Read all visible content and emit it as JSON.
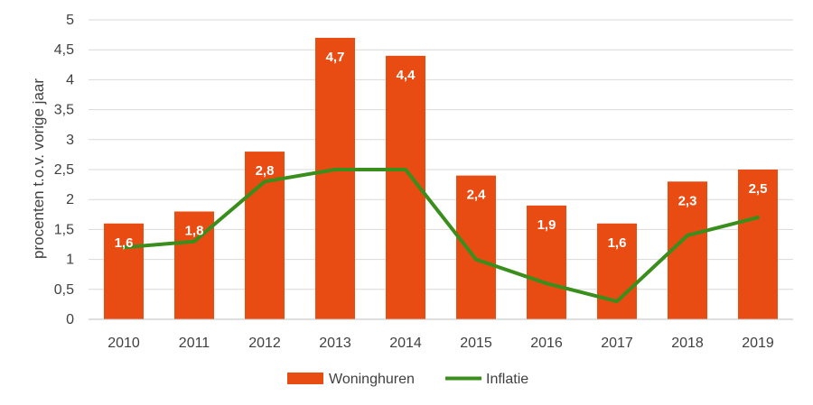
{
  "chart_data": {
    "type": "bar",
    "title": "",
    "xlabel": "",
    "ylabel": "procenten t.o.v. vorige jaar",
    "categories": [
      "2010",
      "2011",
      "2012",
      "2013",
      "2014",
      "2015",
      "2016",
      "2017",
      "2018",
      "2019"
    ],
    "series": [
      {
        "name": "Woninghuren",
        "type": "bar",
        "color": "#E84C13",
        "values": [
          1.6,
          1.8,
          2.8,
          4.7,
          4.4,
          2.4,
          1.9,
          1.6,
          2.3,
          2.5
        ],
        "data_labels": [
          "1,6",
          "1,8",
          "2,8",
          "4,7",
          "4,4",
          "2,4",
          "1,9",
          "1,6",
          "2,3",
          "2,5"
        ]
      },
      {
        "name": "Inflatie",
        "type": "line",
        "color": "#3A8E1C",
        "values": [
          1.2,
          1.3,
          2.3,
          2.5,
          2.5,
          1.0,
          0.6,
          0.3,
          1.4,
          1.7
        ]
      }
    ],
    "ylim": [
      0,
      5
    ],
    "yticks": [
      0,
      0.5,
      1,
      1.5,
      2,
      2.5,
      3,
      3.5,
      4,
      4.5,
      5
    ],
    "ytick_labels": [
      "0",
      "0,5",
      "1",
      "1,5",
      "2",
      "2,5",
      "3",
      "3,5",
      "4",
      "4,5",
      "5"
    ],
    "grid": true,
    "legend_position": "bottom"
  }
}
